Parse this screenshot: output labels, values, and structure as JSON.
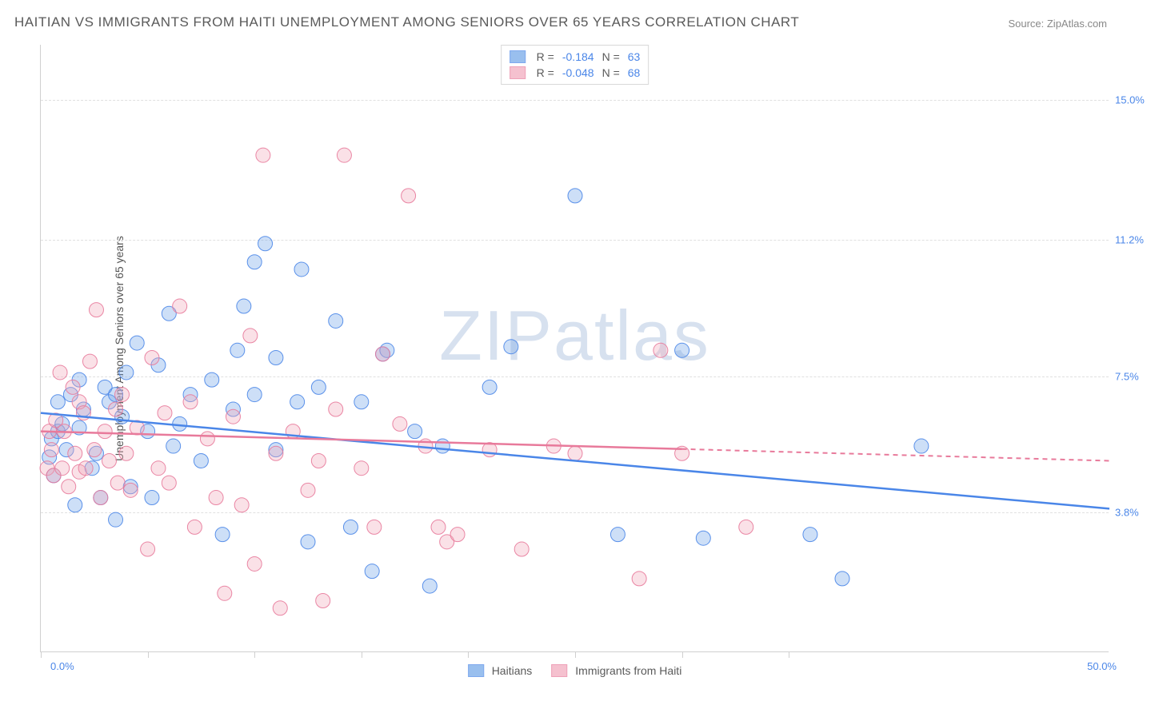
{
  "title": "HAITIAN VS IMMIGRANTS FROM HAITI UNEMPLOYMENT AMONG SENIORS OVER 65 YEARS CORRELATION CHART",
  "source": "Source: ZipAtlas.com",
  "ylabel": "Unemployment Among Seniors over 65 years",
  "watermark": {
    "a": "ZIP",
    "b": "atlas"
  },
  "chart": {
    "type": "scatter",
    "xlim": [
      0,
      50
    ],
    "ylim": [
      0,
      16.5
    ],
    "x_ticks": [
      0,
      5,
      10,
      15,
      20,
      25,
      30,
      35
    ],
    "y_grid": [
      3.8,
      7.5,
      11.2,
      15.0
    ],
    "x_origin_label": "0.0%",
    "x_max_label": "50.0%",
    "y_tick_labels": [
      "3.8%",
      "7.5%",
      "11.2%",
      "15.0%"
    ],
    "background_color": "#ffffff",
    "grid_color": "#e0e0e0",
    "point_radius": 9,
    "point_fill_opacity": 0.35,
    "point_stroke_opacity": 0.9,
    "series": [
      {
        "name": "Haitians",
        "color": "#6fa4e8",
        "border": "#4a86e8",
        "R": "-0.184",
        "N": "63",
        "trend": {
          "x1": 0,
          "y1": 6.5,
          "x2": 50,
          "y2": 3.9,
          "extend_from_x": 50,
          "solid_to_x": 50
        },
        "points": [
          [
            0.4,
            5.3
          ],
          [
            0.5,
            5.8
          ],
          [
            0.6,
            4.8
          ],
          [
            0.8,
            6.0
          ],
          [
            0.8,
            6.8
          ],
          [
            1.0,
            6.2
          ],
          [
            1.2,
            5.5
          ],
          [
            1.4,
            7.0
          ],
          [
            1.6,
            4.0
          ],
          [
            1.8,
            7.4
          ],
          [
            1.8,
            6.1
          ],
          [
            2.0,
            6.6
          ],
          [
            2.4,
            5.0
          ],
          [
            2.6,
            5.4
          ],
          [
            2.8,
            4.2
          ],
          [
            3.0,
            7.2
          ],
          [
            3.2,
            6.8
          ],
          [
            3.5,
            7.0
          ],
          [
            3.5,
            3.6
          ],
          [
            3.8,
            6.4
          ],
          [
            4.0,
            7.6
          ],
          [
            4.2,
            4.5
          ],
          [
            4.5,
            8.4
          ],
          [
            5.0,
            6.0
          ],
          [
            5.2,
            4.2
          ],
          [
            5.5,
            7.8
          ],
          [
            6.0,
            9.2
          ],
          [
            6.2,
            5.6
          ],
          [
            6.5,
            6.2
          ],
          [
            7.0,
            7.0
          ],
          [
            7.5,
            5.2
          ],
          [
            8.0,
            7.4
          ],
          [
            8.5,
            3.2
          ],
          [
            9.0,
            6.6
          ],
          [
            9.2,
            8.2
          ],
          [
            9.5,
            9.4
          ],
          [
            10.0,
            7.0
          ],
          [
            10.0,
            10.6
          ],
          [
            10.5,
            11.1
          ],
          [
            11.0,
            5.5
          ],
          [
            11.0,
            8.0
          ],
          [
            12.0,
            6.8
          ],
          [
            12.2,
            10.4
          ],
          [
            12.5,
            3.0
          ],
          [
            13.0,
            7.2
          ],
          [
            13.8,
            9.0
          ],
          [
            14.5,
            3.4
          ],
          [
            15.0,
            6.8
          ],
          [
            15.5,
            2.2
          ],
          [
            16.0,
            8.1
          ],
          [
            16.2,
            8.2
          ],
          [
            17.5,
            6.0
          ],
          [
            18.2,
            1.8
          ],
          [
            18.8,
            5.6
          ],
          [
            21.0,
            7.2
          ],
          [
            22.0,
            8.3
          ],
          [
            25.0,
            12.4
          ],
          [
            27.0,
            3.2
          ],
          [
            30.0,
            8.2
          ],
          [
            31.0,
            3.1
          ],
          [
            36.0,
            3.2
          ],
          [
            37.5,
            2.0
          ],
          [
            41.2,
            5.6
          ]
        ]
      },
      {
        "name": "Immigrants from Haiti",
        "color": "#f2a8bb",
        "border": "#e87a9b",
        "R": "-0.048",
        "N": "68",
        "trend": {
          "x1": 0,
          "y1": 6.0,
          "x2": 50,
          "y2": 5.2,
          "extend_from_x": 30,
          "solid_to_x": 30
        },
        "points": [
          [
            0.3,
            5.0
          ],
          [
            0.4,
            6.0
          ],
          [
            0.5,
            5.5
          ],
          [
            0.6,
            4.8
          ],
          [
            0.7,
            6.3
          ],
          [
            0.9,
            7.6
          ],
          [
            1.0,
            5.0
          ],
          [
            1.1,
            6.0
          ],
          [
            1.3,
            4.5
          ],
          [
            1.5,
            7.2
          ],
          [
            1.6,
            5.4
          ],
          [
            1.8,
            4.9
          ],
          [
            1.8,
            6.8
          ],
          [
            2.0,
            6.5
          ],
          [
            2.1,
            5.0
          ],
          [
            2.3,
            7.9
          ],
          [
            2.5,
            5.5
          ],
          [
            2.6,
            9.3
          ],
          [
            2.8,
            4.2
          ],
          [
            3.0,
            6.0
          ],
          [
            3.2,
            5.2
          ],
          [
            3.5,
            6.6
          ],
          [
            3.6,
            4.6
          ],
          [
            3.8,
            7.0
          ],
          [
            4.0,
            5.4
          ],
          [
            4.2,
            4.4
          ],
          [
            4.5,
            6.1
          ],
          [
            5.0,
            2.8
          ],
          [
            5.2,
            8.0
          ],
          [
            5.5,
            5.0
          ],
          [
            5.8,
            6.5
          ],
          [
            6.0,
            4.6
          ],
          [
            6.5,
            9.4
          ],
          [
            7.0,
            6.8
          ],
          [
            7.2,
            3.4
          ],
          [
            7.8,
            5.8
          ],
          [
            8.2,
            4.2
          ],
          [
            8.6,
            1.6
          ],
          [
            9.0,
            6.4
          ],
          [
            9.4,
            4.0
          ],
          [
            9.8,
            8.6
          ],
          [
            10.0,
            2.4
          ],
          [
            10.4,
            13.5
          ],
          [
            11.0,
            5.4
          ],
          [
            11.2,
            1.2
          ],
          [
            11.8,
            6.0
          ],
          [
            12.5,
            4.4
          ],
          [
            13.0,
            5.2
          ],
          [
            13.2,
            1.4
          ],
          [
            13.8,
            6.6
          ],
          [
            14.2,
            13.5
          ],
          [
            15.0,
            5.0
          ],
          [
            15.6,
            3.4
          ],
          [
            16.0,
            8.1
          ],
          [
            16.8,
            6.2
          ],
          [
            17.2,
            12.4
          ],
          [
            18.0,
            5.6
          ],
          [
            18.6,
            3.4
          ],
          [
            19.0,
            3.0
          ],
          [
            19.5,
            3.2
          ],
          [
            21.0,
            5.5
          ],
          [
            22.5,
            2.8
          ],
          [
            24.0,
            5.6
          ],
          [
            25.0,
            5.4
          ],
          [
            28.0,
            2.0
          ],
          [
            29.0,
            8.2
          ],
          [
            30.0,
            5.4
          ],
          [
            33.0,
            3.4
          ]
        ]
      }
    ]
  },
  "legend_top": {
    "R_label": "R =",
    "N_label": "N ="
  },
  "legend_bottom": [
    {
      "label": "Haitians",
      "color": "#6fa4e8",
      "border": "#4a86e8"
    },
    {
      "label": "Immigrants from Haiti",
      "color": "#f2a8bb",
      "border": "#e87a9b"
    }
  ]
}
